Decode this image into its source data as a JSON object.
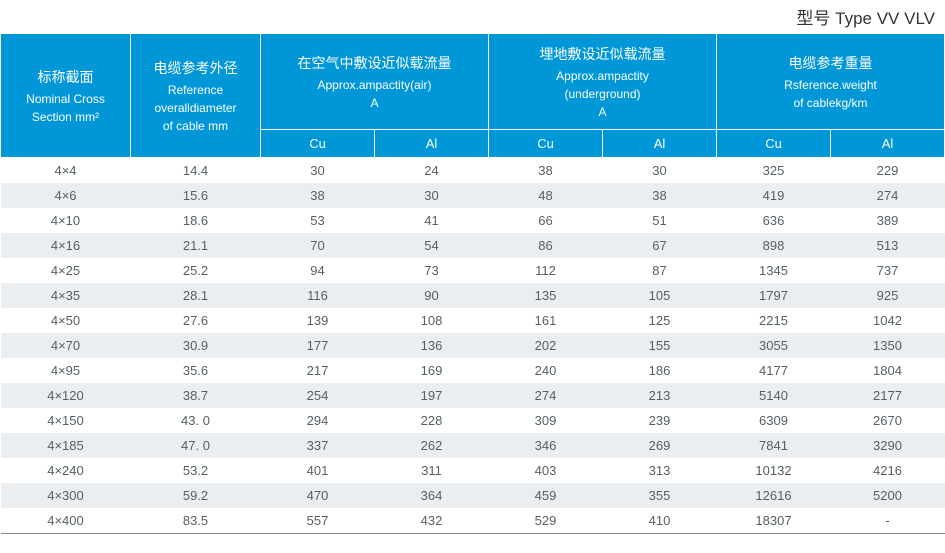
{
  "title": "型号 Type VV VLV",
  "colors": {
    "header_bg": "#0097d8",
    "header_text": "#ffffff",
    "row_even_bg": "#eaeef1",
    "row_odd_bg": "#ffffff",
    "body_text": "#556066",
    "title_text": "#333333",
    "border": "#ffffff",
    "bottom_border": "#888888"
  },
  "header": {
    "nominal": {
      "cn": "标称截面",
      "en1": "Nominal Cross",
      "en2": "Section mm²"
    },
    "diameter": {
      "cn": "电缆参考外径",
      "en1": "Reference",
      "en2": "overalldiameter",
      "en3": "of cable mm"
    },
    "air": {
      "cn": "在空气中敷设近似载流量",
      "en1": "Approx.ampactity(air)",
      "en2": "A"
    },
    "underground": {
      "cn": "埋地敷设近似载流量",
      "en1": "Approx.ampactity",
      "en2": "(underground)",
      "en3": "A"
    },
    "weight": {
      "cn": "电缆参考重量",
      "en1": "Rsference.weight",
      "en2": "of cablekg/km"
    },
    "sub_cu": "Cu",
    "sub_al": "Al"
  },
  "rows": [
    {
      "nominal": "4×4",
      "dia": "14.4",
      "air_cu": "30",
      "air_al": "24",
      "ug_cu": "38",
      "ug_al": "30",
      "w_cu": "325",
      "w_al": "229"
    },
    {
      "nominal": "4×6",
      "dia": "15.6",
      "air_cu": "38",
      "air_al": "30",
      "ug_cu": "48",
      "ug_al": "38",
      "w_cu": "419",
      "w_al": "274"
    },
    {
      "nominal": "4×10",
      "dia": "18.6",
      "air_cu": "53",
      "air_al": "41",
      "ug_cu": "66",
      "ug_al": "51",
      "w_cu": "636",
      "w_al": "389"
    },
    {
      "nominal": "4×16",
      "dia": "21.1",
      "air_cu": "70",
      "air_al": "54",
      "ug_cu": "86",
      "ug_al": "67",
      "w_cu": "898",
      "w_al": "513"
    },
    {
      "nominal": "4×25",
      "dia": "25.2",
      "air_cu": "94",
      "air_al": "73",
      "ug_cu": "112",
      "ug_al": "87",
      "w_cu": "1345",
      "w_al": "737"
    },
    {
      "nominal": "4×35",
      "dia": "28.1",
      "air_cu": "116",
      "air_al": "90",
      "ug_cu": "135",
      "ug_al": "105",
      "w_cu": "1797",
      "w_al": "925"
    },
    {
      "nominal": "4×50",
      "dia": "27.6",
      "air_cu": "139",
      "air_al": "108",
      "ug_cu": "161",
      "ug_al": "125",
      "w_cu": "2215",
      "w_al": "1042"
    },
    {
      "nominal": "4×70",
      "dia": "30.9",
      "air_cu": "177",
      "air_al": "136",
      "ug_cu": "202",
      "ug_al": "155",
      "w_cu": "3055",
      "w_al": "1350"
    },
    {
      "nominal": "4×95",
      "dia": "35.6",
      "air_cu": "217",
      "air_al": "169",
      "ug_cu": "240",
      "ug_al": "186",
      "w_cu": "4177",
      "w_al": "1804"
    },
    {
      "nominal": "4×120",
      "dia": "38.7",
      "air_cu": "254",
      "air_al": "197",
      "ug_cu": "274",
      "ug_al": "213",
      "w_cu": "5140",
      "w_al": "2177"
    },
    {
      "nominal": "4×150",
      "dia": "43. 0",
      "air_cu": "294",
      "air_al": "228",
      "ug_cu": "309",
      "ug_al": "239",
      "w_cu": "6309",
      "w_al": "2670"
    },
    {
      "nominal": "4×185",
      "dia": "47. 0",
      "air_cu": "337",
      "air_al": "262",
      "ug_cu": "346",
      "ug_al": "269",
      "w_cu": "7841",
      "w_al": "3290"
    },
    {
      "nominal": "4×240",
      "dia": "53.2",
      "air_cu": "401",
      "air_al": "311",
      "ug_cu": "403",
      "ug_al": "313",
      "w_cu": "10132",
      "w_al": "4216"
    },
    {
      "nominal": "4×300",
      "dia": "59.2",
      "air_cu": "470",
      "air_al": "364",
      "ug_cu": "459",
      "ug_al": "355",
      "w_cu": "12616",
      "w_al": "5200"
    },
    {
      "nominal": "4×400",
      "dia": "83.5",
      "air_cu": "557",
      "air_al": "432",
      "ug_cu": "529",
      "ug_al": "410",
      "w_cu": "18307",
      "w_al": "-"
    }
  ]
}
